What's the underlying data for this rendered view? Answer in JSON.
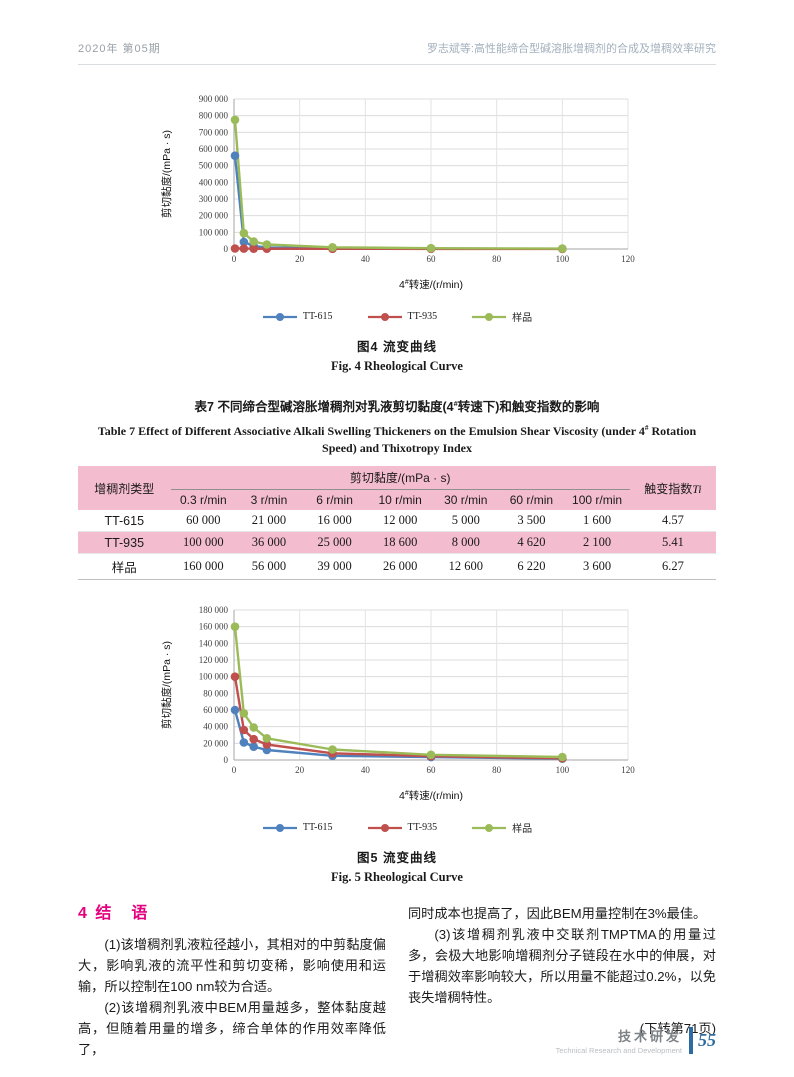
{
  "header": {
    "issue": "2020年 第05期",
    "running_title": "罗志斌等:高性能缔合型碱溶胀增稠剂的合成及增稠效率研究"
  },
  "figure4": {
    "caption_zh": "图4  流变曲线",
    "caption_en": "Fig. 4  Rheological Curve"
  },
  "figure5": {
    "caption_zh": "图5  流变曲线",
    "caption_en": "Fig. 5  Rheological Curve"
  },
  "chart_data": [
    {
      "id": "fig4",
      "type": "line",
      "x": [
        0.3,
        3,
        6,
        10,
        30,
        60,
        100
      ],
      "series": [
        {
          "name": "TT-615",
          "color": "#4F81BD",
          "values": [
            560000,
            42000,
            18000,
            9000,
            4000,
            2500,
            1500
          ]
        },
        {
          "name": "TT-935",
          "color": "#C0504D",
          "values": [
            3000,
            2500,
            2000,
            1500,
            1000,
            800,
            600
          ]
        },
        {
          "name": "样品",
          "color": "#9BBB59",
          "values": [
            775000,
            95000,
            45000,
            27000,
            10000,
            5000,
            2500
          ]
        }
      ],
      "xlabel": "4#转速/(r/min)",
      "ylabel": "剪切黏度/(mPa · s)",
      "xlim": [
        0,
        120
      ],
      "xstep": 20,
      "ylim": [
        0,
        900000
      ],
      "ystep": 100000,
      "grid": true,
      "legend_position": "bottom"
    },
    {
      "id": "fig5",
      "type": "line",
      "x": [
        0.3,
        3,
        6,
        10,
        30,
        60,
        100
      ],
      "series": [
        {
          "name": "TT-615",
          "color": "#4F81BD",
          "values": [
            60000,
            21000,
            16000,
            12000,
            5000,
            3500,
            1600
          ]
        },
        {
          "name": "TT-935",
          "color": "#C0504D",
          "values": [
            100000,
            36000,
            25000,
            18600,
            8000,
            4620,
            2100
          ]
        },
        {
          "name": "样品",
          "color": "#9BBB59",
          "values": [
            160000,
            56000,
            39000,
            26000,
            12600,
            6220,
            3600
          ]
        }
      ],
      "xlabel": "4#转速/(r/min)",
      "ylabel": "剪切黏度/(mPa · s)",
      "xlim": [
        0,
        120
      ],
      "xstep": 20,
      "ylim": [
        0,
        180000
      ],
      "ystep": 20000,
      "grid": true,
      "legend_position": "bottom"
    }
  ],
  "table7": {
    "title_zh_parts": [
      "表7  不同缔合型碱溶胀增稠剂对乳液剪切黏度(4",
      "#",
      "转速下)和触变指数的影响"
    ],
    "title_en_line1_parts": [
      "Table 7  Effect of Different Associative Alkali Swelling Thickeners on the Emulsion Shear Viscosity (under 4",
      "#",
      " Rotation"
    ],
    "title_en_line2": "Speed) and Thixotropy Index",
    "col0_header": "增稠剂类型",
    "group_header": "剪切黏度/(mPa · s)",
    "ti_label_prefix": "触变指数",
    "ti_label_italic": "Ti",
    "speed_headers": [
      "0.3 r/min",
      "3 r/min",
      "6 r/min",
      "10 r/min",
      "30 r/min",
      "60 r/min",
      "100 r/min"
    ],
    "rows": [
      {
        "name": "TT-615",
        "values": [
          "60 000",
          "21 000",
          "16 000",
          "12 000",
          "5 000",
          "3 500",
          "1 600"
        ],
        "ti": "4.57"
      },
      {
        "name": "TT-935",
        "values": [
          "100 000",
          "36 000",
          "25 000",
          "18 600",
          "8 000",
          "4 620",
          "2 100"
        ],
        "ti": "5.41"
      },
      {
        "name": "样品",
        "values": [
          "160 000",
          "56 000",
          "39 000",
          "26 000",
          "12 600",
          "6 220",
          "3 600"
        ],
        "ti": "6.27"
      }
    ]
  },
  "conclusion": {
    "heading": "4 结　语",
    "para1": "(1)该增稠剂乳液粒径越小，其相对的中剪黏度偏大，影响乳液的流平性和剪切变稀，影响使用和运输，所以控制在100 nm较为合适。",
    "para2": "(2)该增稠剂乳液中BEM用量越多，整体黏度越高，但随着用量的增多，缔合单体的作用效率降低了，",
    "para2_cont": "同时成本也提高了，因此BEM用量控制在3%最佳。",
    "para3": "(3)该增稠剂乳液中交联剂TMPTMA的用量过多，会极大地影响增稠剂分子链段在水中的伸展，对于增稠效率影响较大，所以用量不能超过0.2%，以免丧失增稠特性。",
    "note": "(下转第71页)"
  },
  "footer": {
    "section_zh": "技术研发",
    "section_en": "Technical Research and Development",
    "page_number": "55"
  }
}
